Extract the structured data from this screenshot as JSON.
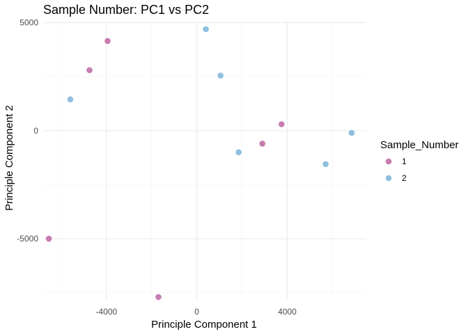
{
  "chart_data": {
    "type": "scatter",
    "title": "Sample Number: PC1 vs PC2",
    "xlabel": "Principle Component 1",
    "ylabel": "Principle Component 2",
    "xlim": [
      -6800,
      7500
    ],
    "ylim": [
      -7800,
      5050
    ],
    "x_ticks": [
      -4000,
      0,
      4000
    ],
    "y_ticks": [
      -5000,
      0,
      5000
    ],
    "x_minor_ticks": [
      -6000,
      -2000,
      2000,
      6000
    ],
    "y_minor_ticks": [
      -7500,
      -2500,
      2500
    ],
    "grid": true,
    "legend": {
      "title": "Sample_Number",
      "position": "right"
    },
    "series": [
      {
        "name": "1",
        "color": "#c77cb0",
        "points": [
          {
            "x": -3950,
            "y": 4150
          },
          {
            "x": -4750,
            "y": 2800
          },
          {
            "x": 3750,
            "y": 300
          },
          {
            "x": 2900,
            "y": -600
          },
          {
            "x": -6550,
            "y": -5000
          },
          {
            "x": -1700,
            "y": -7700
          }
        ]
      },
      {
        "name": "2",
        "color": "#8fbfe0",
        "points": [
          {
            "x": 400,
            "y": 4700
          },
          {
            "x": 1050,
            "y": 2550
          },
          {
            "x": -5600,
            "y": 1450
          },
          {
            "x": 1850,
            "y": -1000
          },
          {
            "x": 5700,
            "y": -1550
          },
          {
            "x": 6850,
            "y": -100
          }
        ]
      }
    ]
  }
}
